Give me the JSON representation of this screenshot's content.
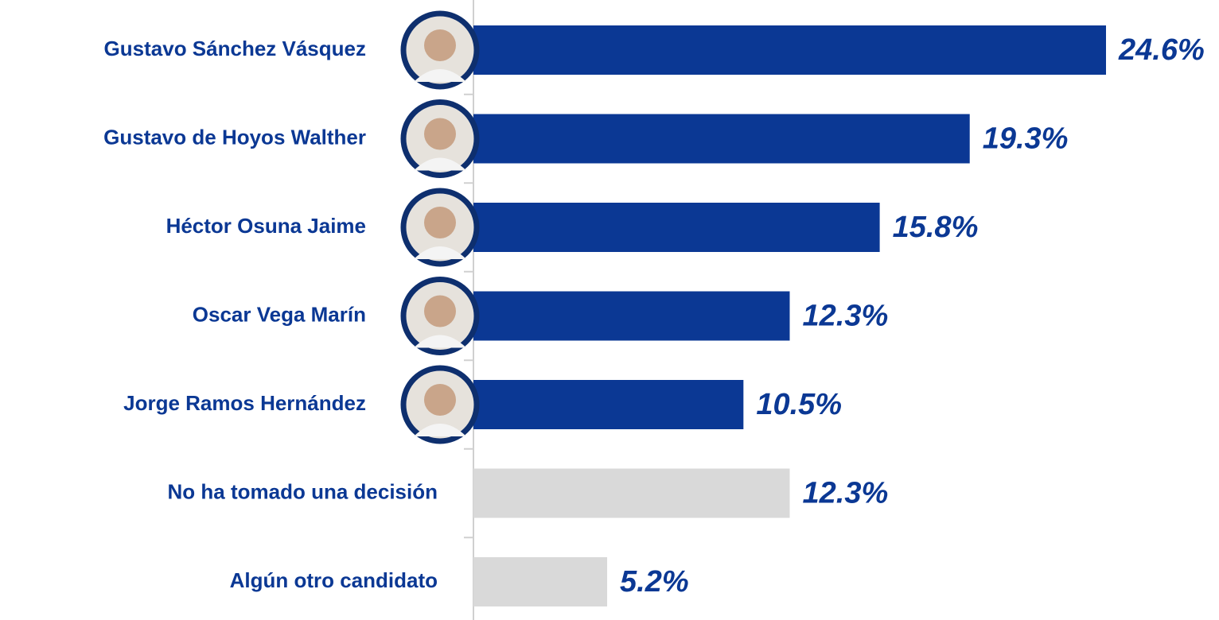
{
  "chart_data": {
    "type": "hbar",
    "categories": [
      "Gustavo Sánchez Vásquez",
      "Gustavo de Hoyos Walther",
      "Héctor Osuna Jaime",
      "Oscar Vega Marín",
      "Jorge Ramos Hernández",
      "No ha tomado una decisión",
      "Algún otro candidato"
    ],
    "values": [
      24.6,
      19.3,
      15.8,
      12.3,
      10.5,
      12.3,
      5.2
    ],
    "value_labels": [
      "24.6%",
      "19.3%",
      "15.8%",
      "12.3%",
      "10.5%",
      "12.3%",
      "5.2%"
    ],
    "colors": [
      "#0b3894",
      "#0b3894",
      "#0b3894",
      "#0b3894",
      "#0b3894",
      "#d9d9d9",
      "#d9d9d9"
    ]
  }
}
